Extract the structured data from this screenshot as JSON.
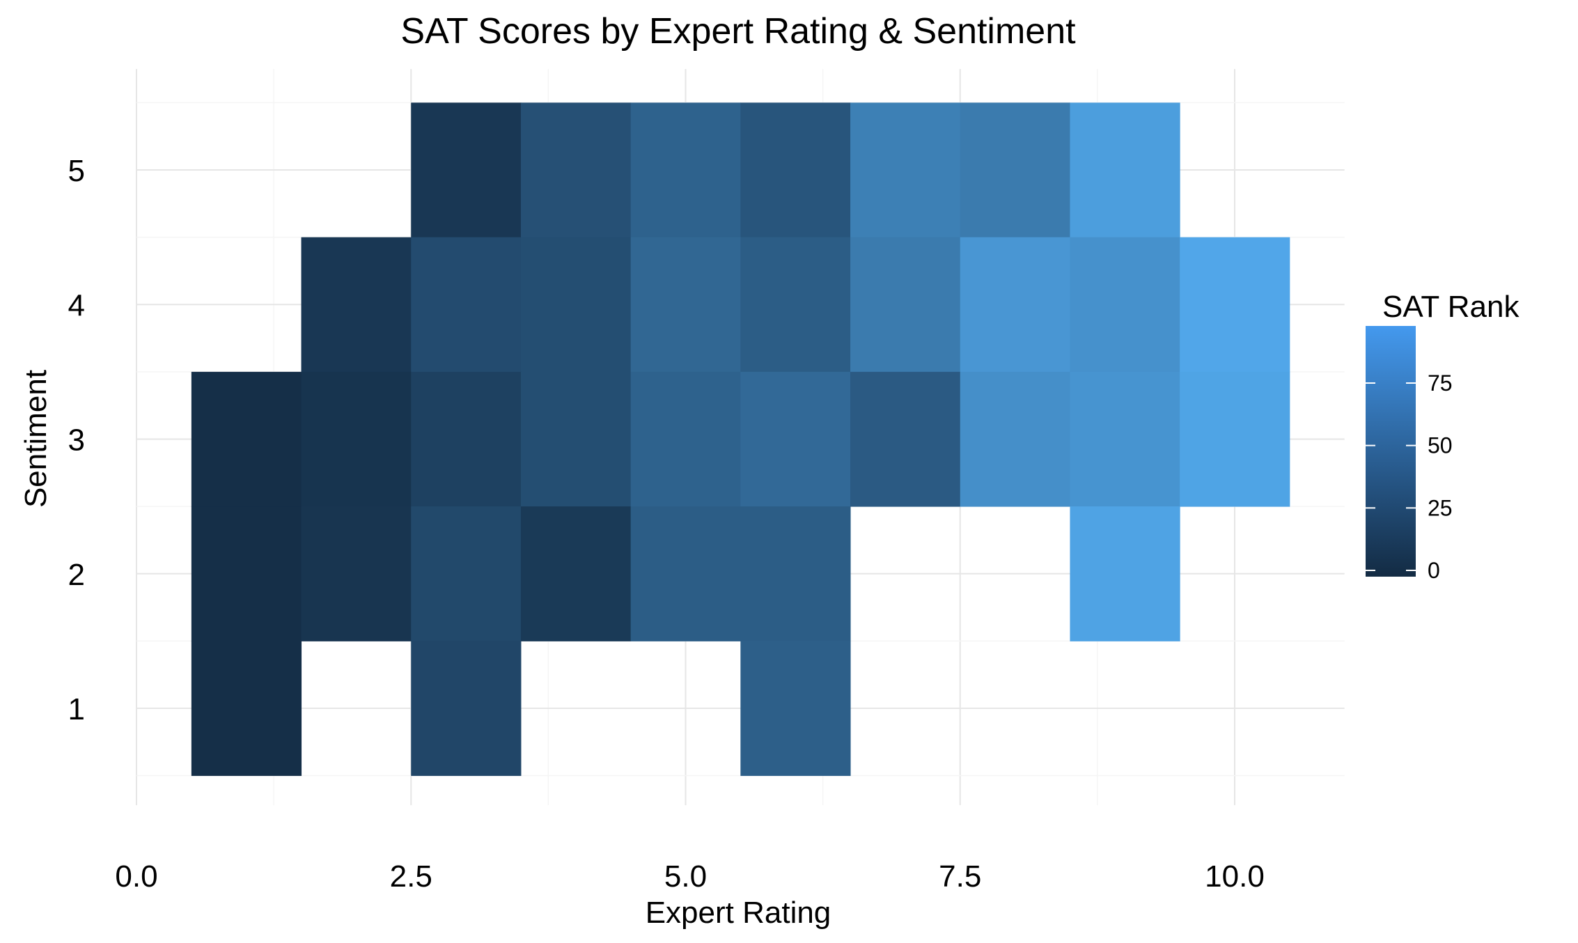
{
  "chart_data": {
    "type": "heatmap",
    "title": "SAT Scores by Expert Rating & Sentiment",
    "xlabel": "Expert Rating",
    "ylabel": "Sentiment",
    "xlim": [
      0,
      11
    ],
    "ylim": [
      0.28,
      5.75
    ],
    "x_ticks": [
      0,
      2.5,
      5,
      7.5,
      10
    ],
    "x_tick_labels": [
      "0.0",
      "2.5",
      "5.0",
      "7.5",
      "10.0"
    ],
    "y_ticks": [
      1,
      2,
      3,
      4,
      5
    ],
    "y_tick_labels": [
      "1",
      "2",
      "3",
      "4",
      "5"
    ],
    "grid": true,
    "legend": {
      "title": "SAT Rank",
      "position": "right",
      "ticks": [
        0,
        25,
        50,
        75
      ],
      "tick_labels": [
        "0",
        "25",
        "50",
        "75"
      ],
      "range": [
        -2,
        98
      ],
      "low_color": "#132B43",
      "high_color": "#56B1F7"
    },
    "cells": [
      {
        "x": 3,
        "y": 5,
        "value": 8
      },
      {
        "x": 4,
        "y": 5,
        "value": 28
      },
      {
        "x": 5,
        "y": 5,
        "value": 42
      },
      {
        "x": 6,
        "y": 5,
        "value": 32
      },
      {
        "x": 7,
        "y": 5,
        "value": 66
      },
      {
        "x": 8,
        "y": 5,
        "value": 62
      },
      {
        "x": 9,
        "y": 5,
        "value": 90
      },
      {
        "x": 2,
        "y": 4,
        "value": 8
      },
      {
        "x": 3,
        "y": 4,
        "value": 24
      },
      {
        "x": 4,
        "y": 4,
        "value": 26
      },
      {
        "x": 5,
        "y": 4,
        "value": 46
      },
      {
        "x": 6,
        "y": 4,
        "value": 38
      },
      {
        "x": 7,
        "y": 4,
        "value": 62
      },
      {
        "x": 8,
        "y": 4,
        "value": 84
      },
      {
        "x": 9,
        "y": 4,
        "value": 80
      },
      {
        "x": 10,
        "y": 4,
        "value": 97
      },
      {
        "x": 1,
        "y": 3,
        "value": 1
      },
      {
        "x": 2,
        "y": 3,
        "value": 5
      },
      {
        "x": 3,
        "y": 3,
        "value": 16
      },
      {
        "x": 4,
        "y": 3,
        "value": 26
      },
      {
        "x": 5,
        "y": 3,
        "value": 42
      },
      {
        "x": 6,
        "y": 3,
        "value": 48
      },
      {
        "x": 7,
        "y": 3,
        "value": 36
      },
      {
        "x": 8,
        "y": 3,
        "value": 78
      },
      {
        "x": 9,
        "y": 3,
        "value": 82
      },
      {
        "x": 10,
        "y": 3,
        "value": 95
      },
      {
        "x": 1,
        "y": 2,
        "value": 1
      },
      {
        "x": 2,
        "y": 2,
        "value": 6
      },
      {
        "x": 3,
        "y": 2,
        "value": 22
      },
      {
        "x": 4,
        "y": 2,
        "value": 10
      },
      {
        "x": 5,
        "y": 2,
        "value": 38
      },
      {
        "x": 6,
        "y": 2,
        "value": 38
      },
      {
        "x": 9,
        "y": 2,
        "value": 94
      },
      {
        "x": 1,
        "y": 1,
        "value": 1
      },
      {
        "x": 3,
        "y": 1,
        "value": 20
      },
      {
        "x": 6,
        "y": 1,
        "value": 40
      }
    ]
  }
}
